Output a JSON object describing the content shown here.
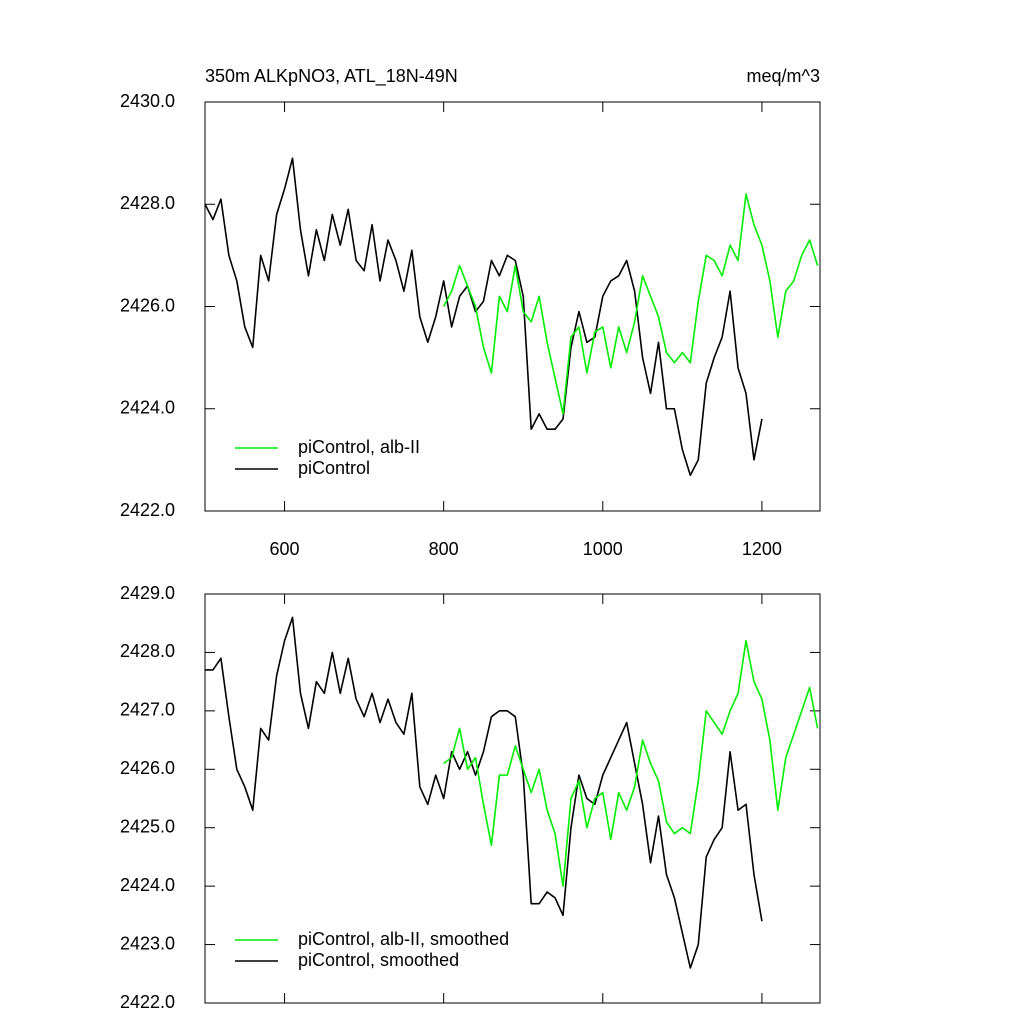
{
  "chart_data": [
    {
      "type": "line",
      "title": "350m ALKpNO3, ATL_18N-49N",
      "units": "meq/m^3",
      "x": [
        500,
        510,
        520,
        530,
        540,
        550,
        560,
        570,
        580,
        590,
        600,
        610,
        620,
        630,
        640,
        650,
        660,
        670,
        680,
        690,
        700,
        710,
        720,
        730,
        740,
        750,
        760,
        770,
        780,
        790,
        800,
        810,
        820,
        830,
        840,
        850,
        860,
        870,
        880,
        890,
        900,
        910,
        920,
        930,
        940,
        950,
        960,
        970,
        980,
        990,
        1000,
        1010,
        1020,
        1030,
        1040,
        1050,
        1060,
        1070,
        1080,
        1090,
        1100,
        1110,
        1120,
        1130,
        1140,
        1150,
        1160,
        1170,
        1180,
        1190,
        1200,
        1210,
        1220,
        1230,
        1240,
        1250,
        1260,
        1270
      ],
      "series": [
        {
          "name": "piControl",
          "color": "#000000",
          "values": [
            2428.0,
            2427.7,
            2428.1,
            2427.0,
            2426.5,
            2425.6,
            2425.2,
            2427.0,
            2426.5,
            2427.8,
            2428.3,
            2428.9,
            2427.5,
            2426.6,
            2427.5,
            2426.9,
            2427.8,
            2427.2,
            2427.9,
            2426.9,
            2426.7,
            2427.6,
            2426.5,
            2427.3,
            2426.9,
            2426.3,
            2427.1,
            2425.8,
            2425.3,
            2425.8,
            2426.5,
            2425.6,
            2426.2,
            2426.4,
            2425.9,
            2426.1,
            2426.9,
            2426.6,
            2427.0,
            2426.9,
            2426.2,
            2423.6,
            2423.9,
            2423.6,
            2423.6,
            2423.8,
            2425.2,
            2425.9,
            2425.3,
            2425.4,
            2426.2,
            2426.5,
            2426.6,
            2426.9,
            2426.3,
            2425.0,
            2424.3,
            2425.3,
            2424.0,
            2424.0,
            2423.2,
            2422.7,
            2423.0,
            2424.5,
            2425.0,
            2425.4,
            2426.3,
            2424.8,
            2424.3,
            2423.0,
            2423.8,
            null,
            null,
            null,
            null,
            null,
            null,
            null
          ]
        },
        {
          "name": "piControl, alb-II",
          "color": "#00ee00",
          "values": [
            null,
            null,
            null,
            null,
            null,
            null,
            null,
            null,
            null,
            null,
            null,
            null,
            null,
            null,
            null,
            null,
            null,
            null,
            null,
            null,
            null,
            null,
            null,
            null,
            null,
            null,
            null,
            null,
            null,
            null,
            2426.0,
            2426.3,
            2426.8,
            2426.4,
            2426.0,
            2425.2,
            2424.7,
            2426.2,
            2425.9,
            2426.8,
            2425.9,
            2425.7,
            2426.2,
            2425.3,
            2424.6,
            2423.9,
            2425.4,
            2425.6,
            2424.7,
            2425.5,
            2425.6,
            2424.8,
            2425.6,
            2425.1,
            2425.7,
            2426.6,
            2426.2,
            2425.8,
            2425.1,
            2424.9,
            2425.1,
            2424.9,
            2426.1,
            2427.0,
            2426.9,
            2426.6,
            2427.2,
            2426.9,
            2428.2,
            2427.6,
            2427.2,
            2426.5,
            2425.4,
            2426.3,
            2426.5,
            2427.0,
            2427.3,
            2426.8
          ]
        }
      ],
      "xlim": [
        500,
        1273
      ],
      "xticks": [
        600,
        800,
        1000,
        1200
      ],
      "show_xtick_labels": true,
      "ylim": [
        2422,
        2430
      ],
      "yticks": [
        {
          "value": 2422,
          "label": "2422.0"
        },
        {
          "value": 2424,
          "label": "2424.0"
        },
        {
          "value": 2426,
          "label": "2426.0"
        },
        {
          "value": 2428,
          "label": "2428.0"
        },
        {
          "value": 2430,
          "label": "2430.0"
        }
      ],
      "legend": "lower left"
    },
    {
      "type": "line",
      "x": [
        500,
        510,
        520,
        530,
        540,
        550,
        560,
        570,
        580,
        590,
        600,
        610,
        620,
        630,
        640,
        650,
        660,
        670,
        680,
        690,
        700,
        710,
        720,
        730,
        740,
        750,
        760,
        770,
        780,
        790,
        800,
        810,
        820,
        830,
        840,
        850,
        860,
        870,
        880,
        890,
        900,
        910,
        920,
        930,
        940,
        950,
        960,
        970,
        980,
        990,
        1000,
        1010,
        1020,
        1030,
        1040,
        1050,
        1060,
        1070,
        1080,
        1090,
        1100,
        1110,
        1120,
        1130,
        1140,
        1150,
        1160,
        1170,
        1180,
        1190,
        1200,
        1210,
        1220,
        1230,
        1240,
        1250,
        1260,
        1270
      ],
      "series": [
        {
          "name": "piControl, smoothed",
          "color": "#000000",
          "values": [
            2427.7,
            2427.7,
            2427.9,
            2426.9,
            2426.0,
            2425.7,
            2425.3,
            2426.7,
            2426.5,
            2427.6,
            2428.2,
            2428.6,
            2427.3,
            2426.7,
            2427.5,
            2427.3,
            2428.0,
            2427.3,
            2427.9,
            2427.2,
            2426.9,
            2427.3,
            2426.8,
            2427.2,
            2426.8,
            2426.6,
            2427.3,
            2425.7,
            2425.4,
            2425.9,
            2425.5,
            2426.3,
            2426.0,
            2426.3,
            2425.9,
            2426.3,
            2426.9,
            2427.0,
            2427.0,
            2426.9,
            2425.9,
            2423.7,
            2423.7,
            2423.9,
            2423.8,
            2423.5,
            2425.0,
            2425.9,
            2425.5,
            2425.4,
            2425.9,
            2426.2,
            2426.5,
            2426.8,
            2426.1,
            2425.4,
            2424.4,
            2425.2,
            2424.2,
            2423.8,
            2423.2,
            2422.6,
            2423.0,
            2424.5,
            2424.8,
            2425.0,
            2426.3,
            2425.3,
            2425.4,
            2424.2,
            2423.4,
            null,
            null,
            null,
            null,
            null,
            null,
            null
          ]
        },
        {
          "name": "piControl, alb-II, smoothed",
          "color": "#00ee00",
          "values": [
            null,
            null,
            null,
            null,
            null,
            null,
            null,
            null,
            null,
            null,
            null,
            null,
            null,
            null,
            null,
            null,
            null,
            null,
            null,
            null,
            null,
            null,
            null,
            null,
            null,
            null,
            null,
            null,
            null,
            null,
            2426.1,
            2426.2,
            2426.7,
            2426.0,
            2426.2,
            2425.4,
            2424.7,
            2425.9,
            2425.9,
            2426.4,
            2426.0,
            2425.6,
            2426.0,
            2425.3,
            2424.9,
            2424.0,
            2425.5,
            2425.8,
            2425.0,
            2425.5,
            2425.6,
            2424.8,
            2425.6,
            2425.3,
            2425.7,
            2426.5,
            2426.1,
            2425.8,
            2425.1,
            2424.9,
            2425.0,
            2424.9,
            2425.8,
            2427.0,
            2426.8,
            2426.6,
            2427.0,
            2427.3,
            2428.2,
            2427.5,
            2427.2,
            2426.5,
            2425.3,
            2426.2,
            2426.6,
            2427.0,
            2427.4,
            2426.7
          ]
        }
      ],
      "xlim": [
        500,
        1273
      ],
      "xticks": [
        600,
        800,
        1000,
        1200
      ],
      "show_xtick_labels": false,
      "ylim": [
        2422,
        2429
      ],
      "yticks": [
        {
          "value": 2422,
          "label": "2422.0"
        },
        {
          "value": 2423,
          "label": "2423.0"
        },
        {
          "value": 2424,
          "label": "2424.0"
        },
        {
          "value": 2425,
          "label": "2425.0"
        },
        {
          "value": 2426,
          "label": "2426.0"
        },
        {
          "value": 2427,
          "label": "2427.0"
        },
        {
          "value": 2428,
          "label": "2428.0"
        },
        {
          "value": 2429,
          "label": "2429.0"
        }
      ],
      "legend": "lower left"
    }
  ]
}
